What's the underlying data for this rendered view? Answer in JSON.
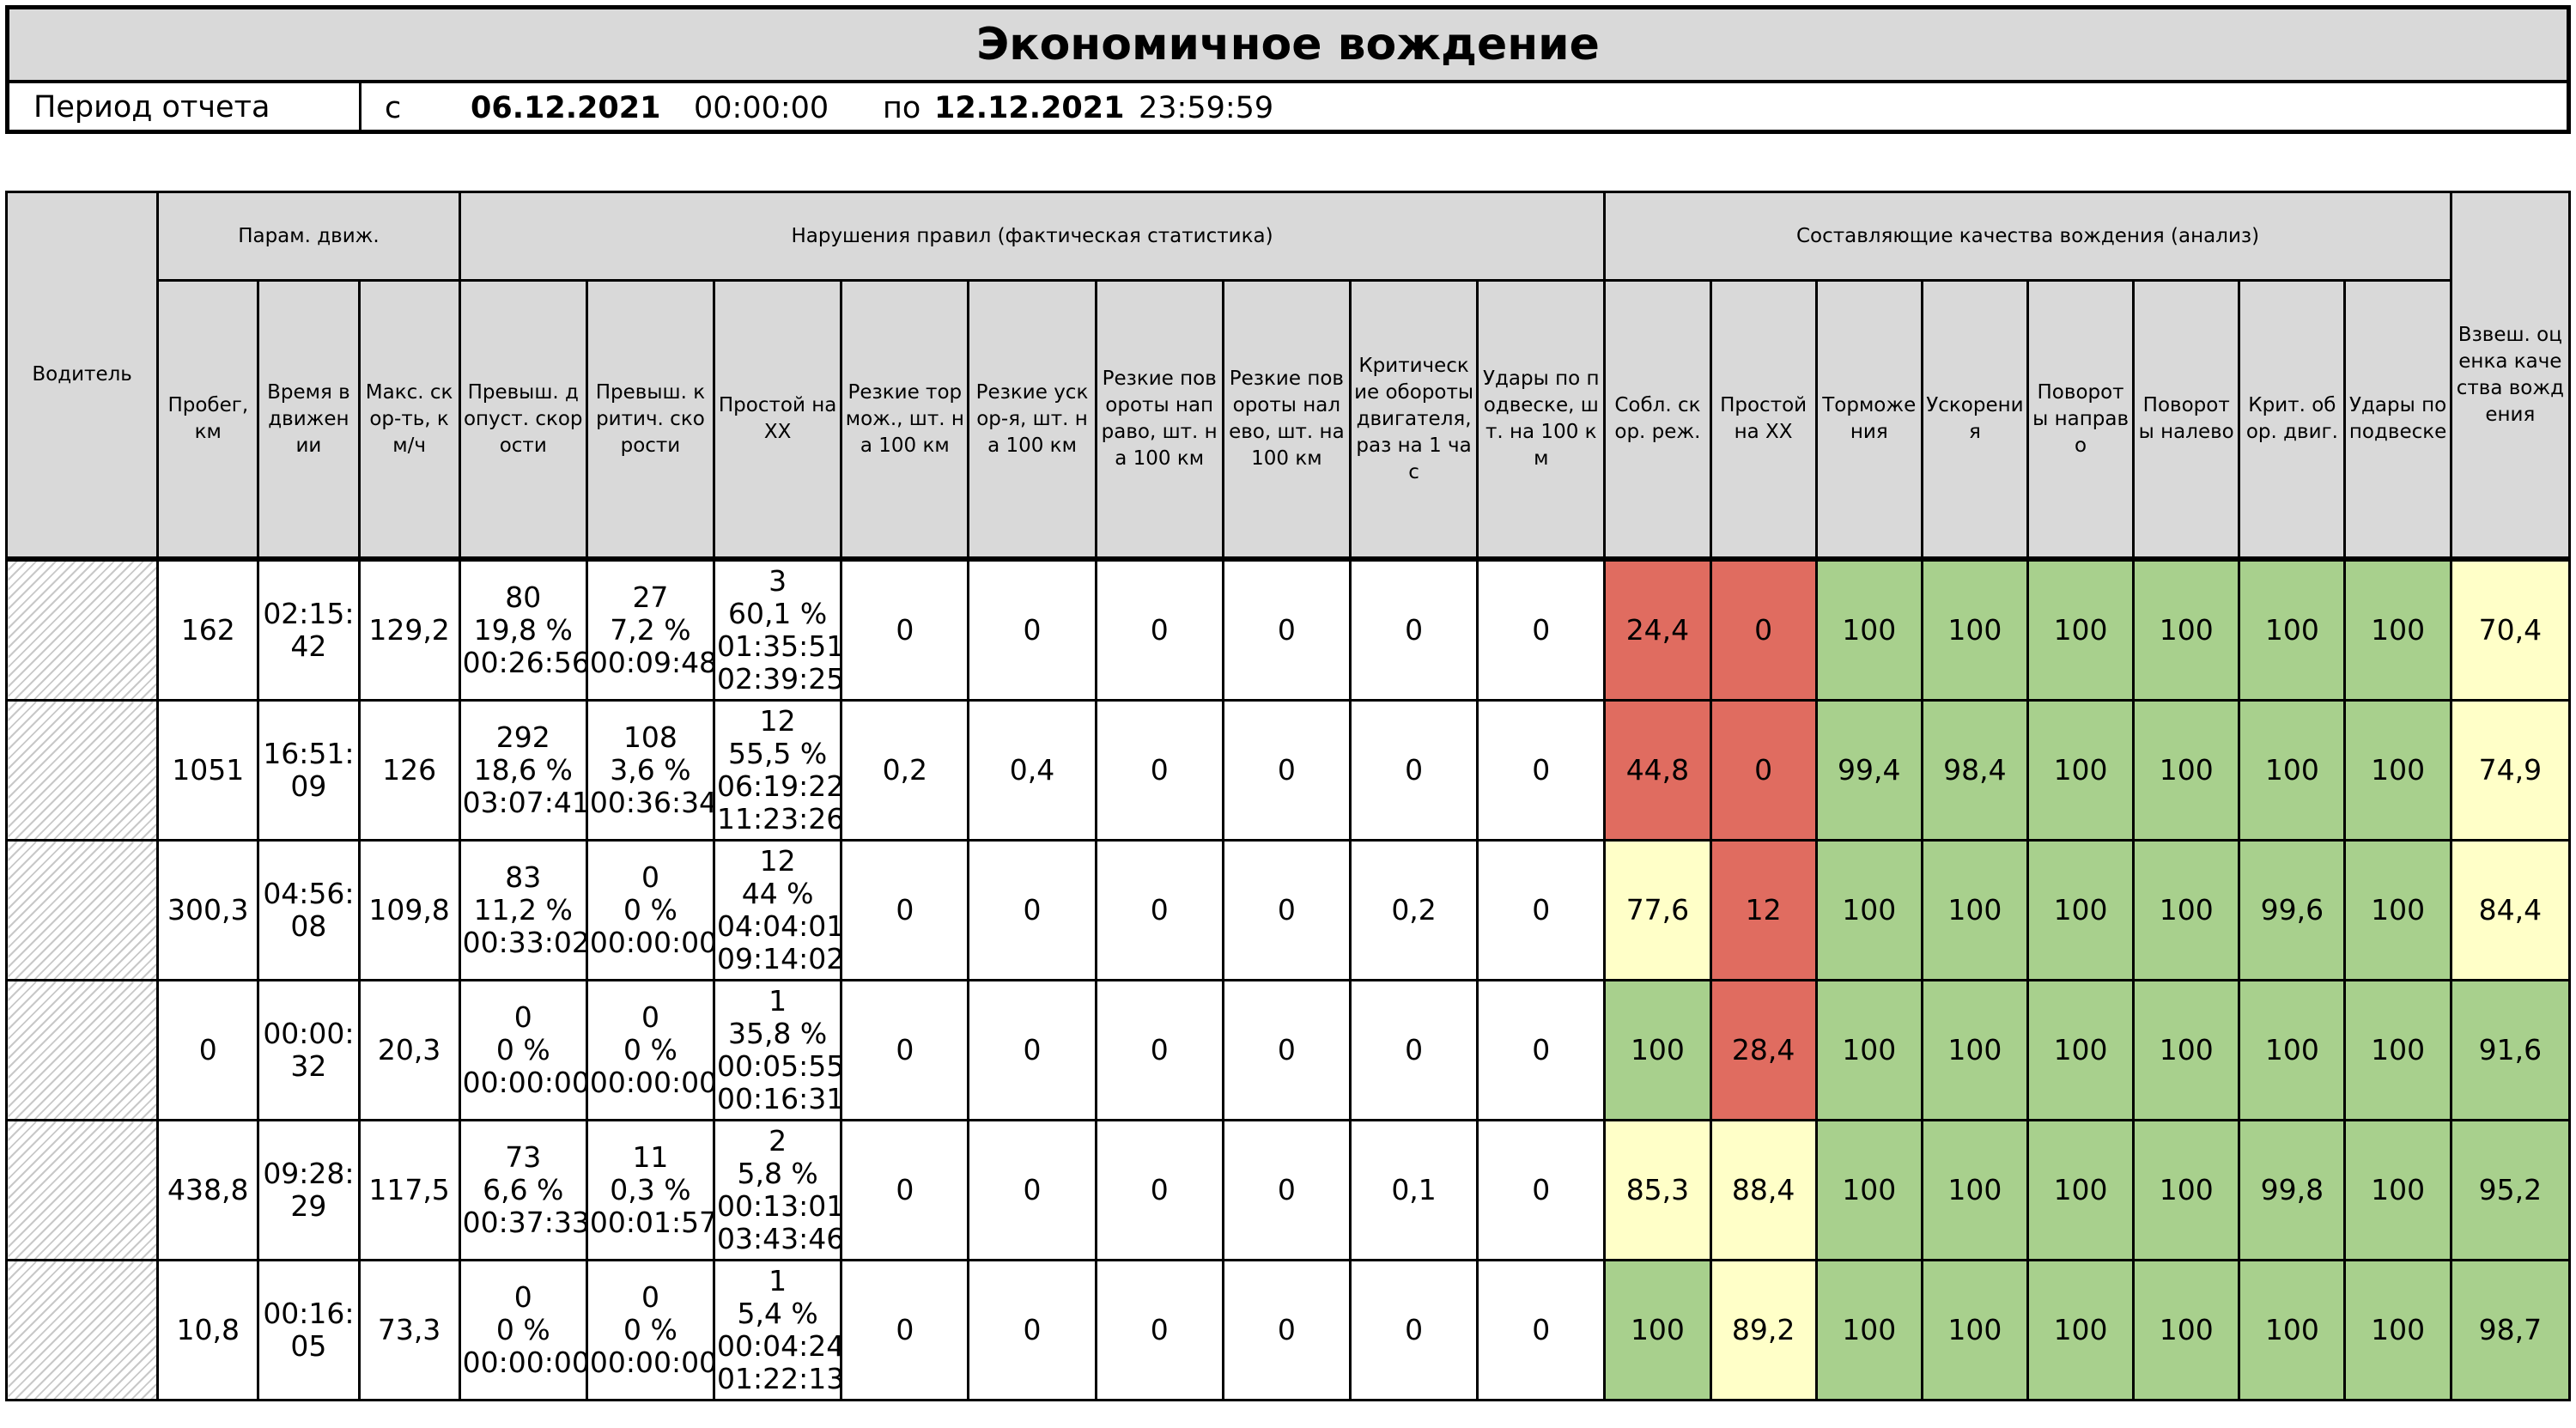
{
  "report": {
    "title": "Экономичное вождение",
    "period_label": "Период отчета",
    "from_word": "с",
    "from_date": "06.12.2021",
    "from_time": "00:00:00",
    "to_word": "по",
    "to_date": "12.12.2021",
    "to_time": "23:59:59"
  },
  "table": {
    "groups": {
      "driver": "Водитель",
      "motion": "Парам. движ.",
      "violations": "Нарушения правил (фактическая статистика)",
      "quality": "Составляющие качества вождения (анализ)",
      "score": "Взвеш. оценка качества вождения"
    },
    "columns": [
      "Пробег, км",
      "Время в движении",
      "Макс. скор-ть, км/ч",
      "Превыш. допуст. скорости",
      "Превыш. критич. скорости",
      "Простой на ХХ",
      "Резкие тормож., шт. на 100 км",
      "Резкие ускор-я, шт. на 100 км",
      "Резкие повороты направо, шт. на 100 км",
      "Резкие повороты налево, шт. на 100 км",
      "Критические обороты двигателя, раз на 1 час",
      "Удары по подвеске, шт. на 100 км",
      "Собл. скор. реж.",
      "Простой на ХХ",
      "Торможения",
      "Ускорения",
      "Повороты направо",
      "Повороты налево",
      "Крит. обор. двиг.",
      "Удары по подвеске"
    ],
    "rows": [
      {
        "driver": "",
        "cells": [
          "162",
          "02:15:\n42",
          "129,2",
          "80\n19,8 %\n00:26:56",
          "27\n7,2 %\n00:09:48",
          "3\n60,1 %\n01:35:51\n02:39:25",
          "0",
          "0",
          "0",
          "0",
          "0",
          "0",
          "24,4",
          "0",
          "100",
          "100",
          "100",
          "100",
          "100",
          "100",
          "70,4"
        ],
        "colors": [
          "red",
          "red",
          "green",
          "green",
          "green",
          "green",
          "green",
          "green",
          "yellow"
        ]
      },
      {
        "driver": "",
        "cells": [
          "1051",
          "16:51:\n09",
          "126",
          "292\n18,6 %\n03:07:41",
          "108\n3,6 %\n00:36:34",
          "12\n55,5 %\n06:19:22\n11:23:26",
          "0,2",
          "0,4",
          "0",
          "0",
          "0",
          "0",
          "44,8",
          "0",
          "99,4",
          "98,4",
          "100",
          "100",
          "100",
          "100",
          "74,9"
        ],
        "colors": [
          "red",
          "red",
          "green",
          "green",
          "green",
          "green",
          "green",
          "green",
          "yellow"
        ]
      },
      {
        "driver": "",
        "cells": [
          "300,3",
          "04:56:\n08",
          "109,8",
          "83\n11,2 %\n00:33:02",
          "0\n0 %\n00:00:00",
          "12\n44 %\n04:04:01\n09:14:02",
          "0",
          "0",
          "0",
          "0",
          "0,2",
          "0",
          "77,6",
          "12",
          "100",
          "100",
          "100",
          "100",
          "99,6",
          "100",
          "84,4"
        ],
        "colors": [
          "yellow",
          "red",
          "green",
          "green",
          "green",
          "green",
          "green",
          "green",
          "yellow"
        ]
      },
      {
        "driver": "",
        "cells": [
          "0",
          "00:00:\n32",
          "20,3",
          "0\n0 %\n00:00:00",
          "0\n0 %\n00:00:00",
          "1\n35,8 %\n00:05:55\n00:16:31",
          "0",
          "0",
          "0",
          "0",
          "0",
          "0",
          "100",
          "28,4",
          "100",
          "100",
          "100",
          "100",
          "100",
          "100",
          "91,6"
        ],
        "colors": [
          "green",
          "red",
          "green",
          "green",
          "green",
          "green",
          "green",
          "green",
          "green"
        ]
      },
      {
        "driver": "",
        "cells": [
          "438,8",
          "09:28:\n29",
          "117,5",
          "73\n6,6 %\n00:37:33",
          "11\n0,3 %\n00:01:57",
          "2\n5,8 %\n00:13:01\n03:43:46",
          "0",
          "0",
          "0",
          "0",
          "0,1",
          "0",
          "85,3",
          "88,4",
          "100",
          "100",
          "100",
          "100",
          "99,8",
          "100",
          "95,2"
        ],
        "colors": [
          "yellow",
          "yellow",
          "green",
          "green",
          "green",
          "green",
          "green",
          "green",
          "green"
        ]
      },
      {
        "driver": "",
        "cells": [
          "10,8",
          "00:16:\n05",
          "73,3",
          "0\n0 %\n00:00:00",
          "0\n0 %\n00:00:00",
          "1\n5,4 %\n00:04:24\n01:22:13",
          "0",
          "0",
          "0",
          "0",
          "0",
          "0",
          "100",
          "89,2",
          "100",
          "100",
          "100",
          "100",
          "100",
          "100",
          "98,7"
        ],
        "colors": [
          "green",
          "yellow",
          "green",
          "green",
          "green",
          "green",
          "green",
          "green",
          "green"
        ]
      }
    ]
  }
}
